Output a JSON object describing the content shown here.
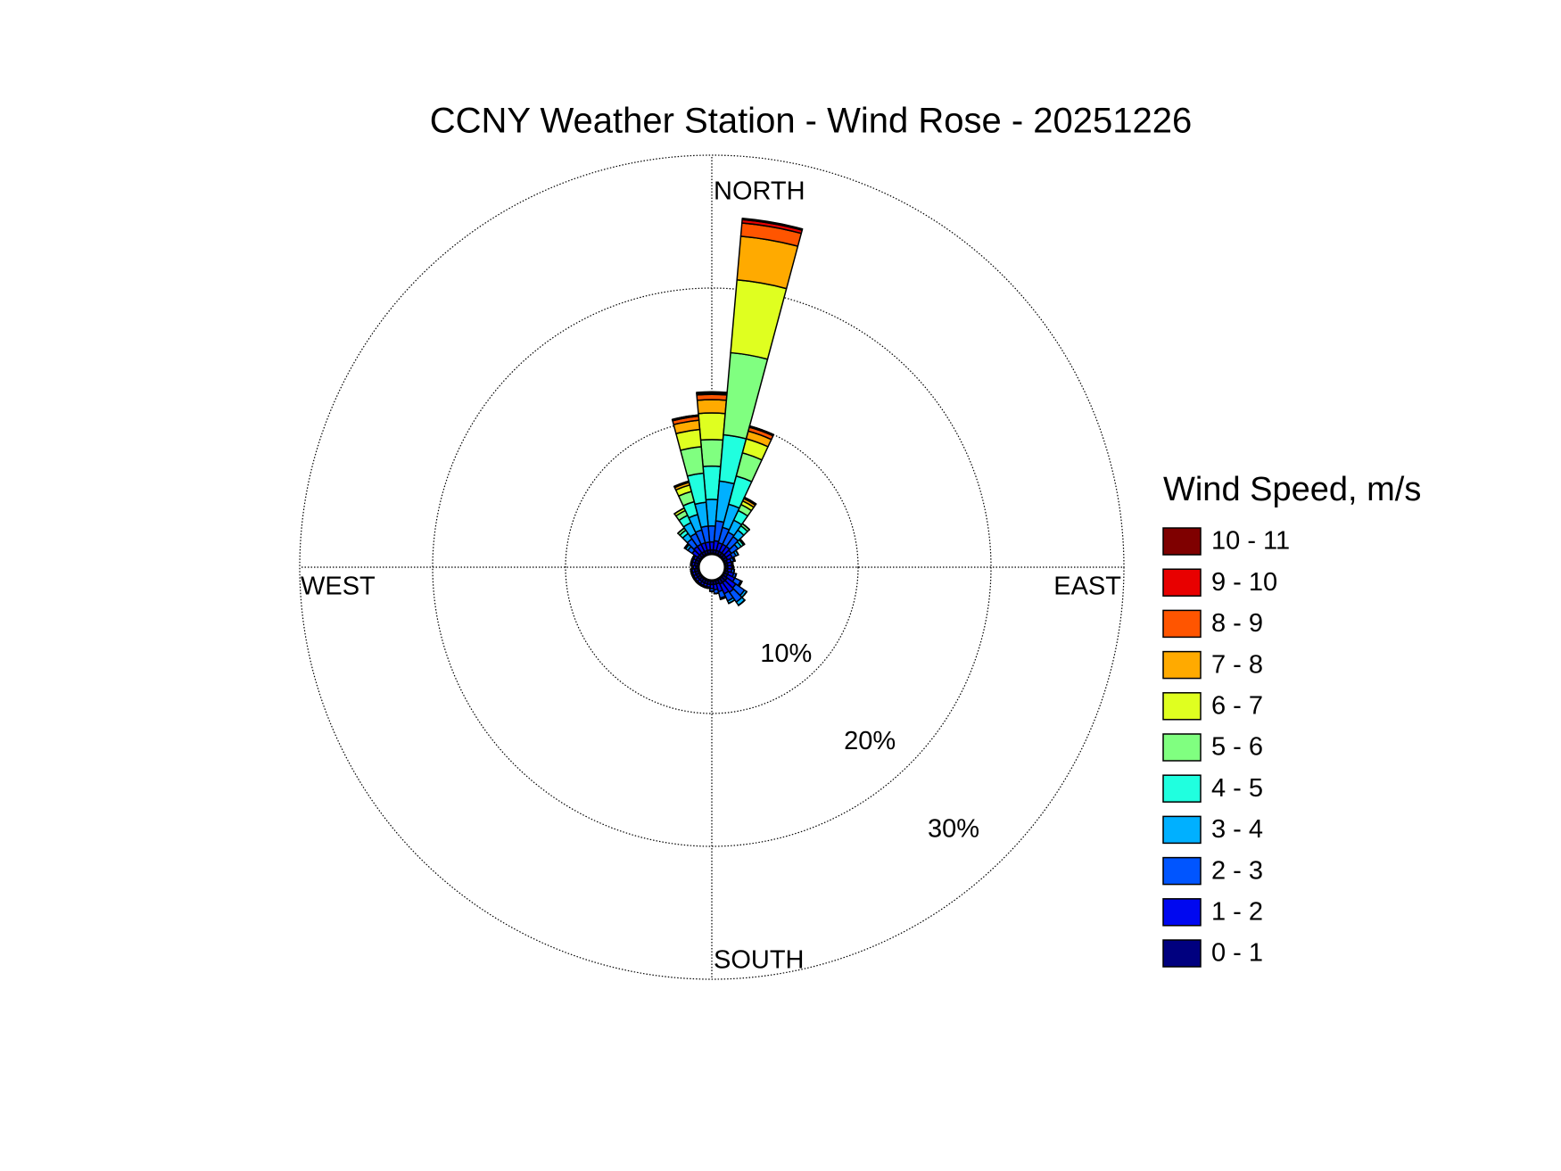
{
  "chart_data": {
    "type": "windrose",
    "title": "CCNY Weather Station - Wind Rose - 20251226",
    "legend_title": "Wind Speed, m/s",
    "direction_labels": [
      "NORTH",
      "EAST",
      "SOUTH",
      "WEST"
    ],
    "x": [
      0,
      10,
      20,
      30,
      40,
      50,
      60,
      70,
      80,
      90,
      100,
      110,
      120,
      130,
      140,
      150,
      160,
      170,
      180,
      190,
      200,
      210,
      220,
      230,
      240,
      250,
      260,
      270,
      280,
      290,
      300,
      310,
      320,
      330,
      340,
      350
    ],
    "rlim": [
      0,
      30
    ],
    "rticks": [
      {
        "value": 10,
        "label": "10%"
      },
      {
        "value": 20,
        "label": "20%"
      },
      {
        "value": 30,
        "label": "30%"
      }
    ],
    "legend": "right",
    "series": [
      {
        "name": "0 - 1",
        "color": "#00007f",
        "values": [
          0.3,
          0.3,
          0.3,
          0.3,
          0.3,
          0.3,
          0.3,
          0.2,
          0.2,
          0.2,
          0.2,
          0.3,
          0.3,
          0.4,
          0.4,
          0.4,
          0.3,
          0.3,
          0.3,
          0.3,
          0.3,
          0.3,
          0.3,
          0.3,
          0.3,
          0.3,
          0.3,
          0.2,
          0.3,
          0.3,
          0.3,
          0.3,
          0.3,
          0.3,
          0.3,
          0.3
        ]
      },
      {
        "name": "1 - 2",
        "color": "#0008f0",
        "values": [
          0.6,
          0.7,
          0.6,
          0.6,
          0.6,
          0.5,
          0.4,
          0.3,
          0.3,
          0.3,
          0.3,
          0.4,
          0.6,
          0.8,
          0.9,
          0.8,
          0.6,
          0.4,
          0.3,
          0.2,
          0.2,
          0.2,
          0.2,
          0.2,
          0.2,
          0.2,
          0.2,
          0.2,
          0.2,
          0.2,
          0.2,
          0.5,
          0.6,
          0.6,
          0.6,
          0.6
        ]
      },
      {
        "name": "2 - 3",
        "color": "#0055ff",
        "values": [
          1.2,
          1.5,
          1.2,
          1.0,
          0.9,
          0.6,
          0.3,
          0.2,
          0.1,
          0.1,
          0.2,
          0.2,
          0.5,
          0.8,
          0.9,
          0.6,
          0.5,
          0.3,
          0.2,
          0.1,
          0.1,
          0.1,
          0.1,
          0.1,
          0.1,
          0.1,
          0.1,
          0.1,
          0.1,
          0.1,
          0.1,
          0.4,
          0.7,
          0.9,
          1.0,
          1.2
        ]
      },
      {
        "name": "3 - 4",
        "color": "#00b0ff",
        "values": [
          2.0,
          3.0,
          1.8,
          1.0,
          0.6,
          0.3,
          0.2,
          0.1,
          0,
          0,
          0,
          0,
          0.1,
          0.2,
          0.3,
          0.2,
          0.1,
          0,
          0,
          0,
          0,
          0,
          0,
          0,
          0,
          0,
          0,
          0,
          0,
          0,
          0,
          0.2,
          0.5,
          0.9,
          1.2,
          1.8
        ]
      },
      {
        "name": "4 - 5",
        "color": "#20ffdf",
        "values": [
          2.5,
          3.5,
          2.2,
          0.8,
          0.4,
          0.2,
          0,
          0,
          0,
          0,
          0,
          0,
          0,
          0,
          0,
          0,
          0,
          0,
          0,
          0,
          0,
          0,
          0,
          0,
          0,
          0,
          0,
          0,
          0,
          0,
          0,
          0.1,
          0.3,
          0.6,
          1.0,
          2.2
        ]
      },
      {
        "name": "5 - 6",
        "color": "#80ff80",
        "values": [
          2.0,
          6.2,
          1.8,
          0.5,
          0.2,
          0.1,
          0,
          0,
          0,
          0,
          0,
          0,
          0,
          0,
          0,
          0,
          0,
          0,
          0,
          0,
          0,
          0,
          0,
          0,
          0,
          0,
          0,
          0,
          0,
          0,
          0,
          0,
          0.2,
          0.4,
          0.8,
          2.0
        ]
      },
      {
        "name": "6 - 7",
        "color": "#dfff20",
        "values": [
          2.0,
          5.5,
          1.1,
          0.3,
          0,
          0,
          0,
          0,
          0,
          0,
          0,
          0,
          0,
          0,
          0,
          0,
          0,
          0,
          0,
          0,
          0,
          0,
          0,
          0,
          0,
          0,
          0,
          0,
          0,
          0,
          0,
          0,
          0,
          0.2,
          0.5,
          1.3
        ]
      },
      {
        "name": "7 - 8",
        "color": "#ffaa00",
        "values": [
          1.0,
          3.3,
          0.6,
          0.2,
          0,
          0,
          0,
          0,
          0,
          0,
          0,
          0,
          0,
          0,
          0,
          0,
          0,
          0,
          0,
          0,
          0,
          0,
          0,
          0,
          0,
          0,
          0,
          0,
          0,
          0,
          0,
          0,
          0,
          0,
          0.2,
          0.7
        ]
      },
      {
        "name": "8 - 9",
        "color": "#ff5500",
        "values": [
          0.4,
          1.0,
          0.3,
          0.1,
          0,
          0,
          0,
          0,
          0,
          0,
          0,
          0,
          0,
          0,
          0,
          0,
          0,
          0,
          0,
          0,
          0,
          0,
          0,
          0,
          0,
          0,
          0,
          0,
          0,
          0,
          0,
          0,
          0,
          0,
          0.1,
          0.3
        ]
      },
      {
        "name": "9 - 10",
        "color": "#e80000",
        "values": [
          0.1,
          0.25,
          0.1,
          0,
          0,
          0,
          0,
          0,
          0,
          0,
          0,
          0,
          0,
          0,
          0,
          0,
          0,
          0,
          0,
          0,
          0,
          0,
          0,
          0,
          0,
          0,
          0,
          0,
          0,
          0,
          0,
          0,
          0,
          0,
          0,
          0.1
        ]
      },
      {
        "name": "10 - 11",
        "color": "#7f0000",
        "values": [
          0.1,
          0.1,
          0,
          0,
          0,
          0,
          0,
          0,
          0,
          0,
          0,
          0,
          0,
          0,
          0,
          0,
          0,
          0,
          0,
          0,
          0,
          0,
          0,
          0,
          0,
          0,
          0,
          0,
          0,
          0,
          0,
          0,
          0,
          0,
          0,
          0
        ]
      }
    ]
  }
}
